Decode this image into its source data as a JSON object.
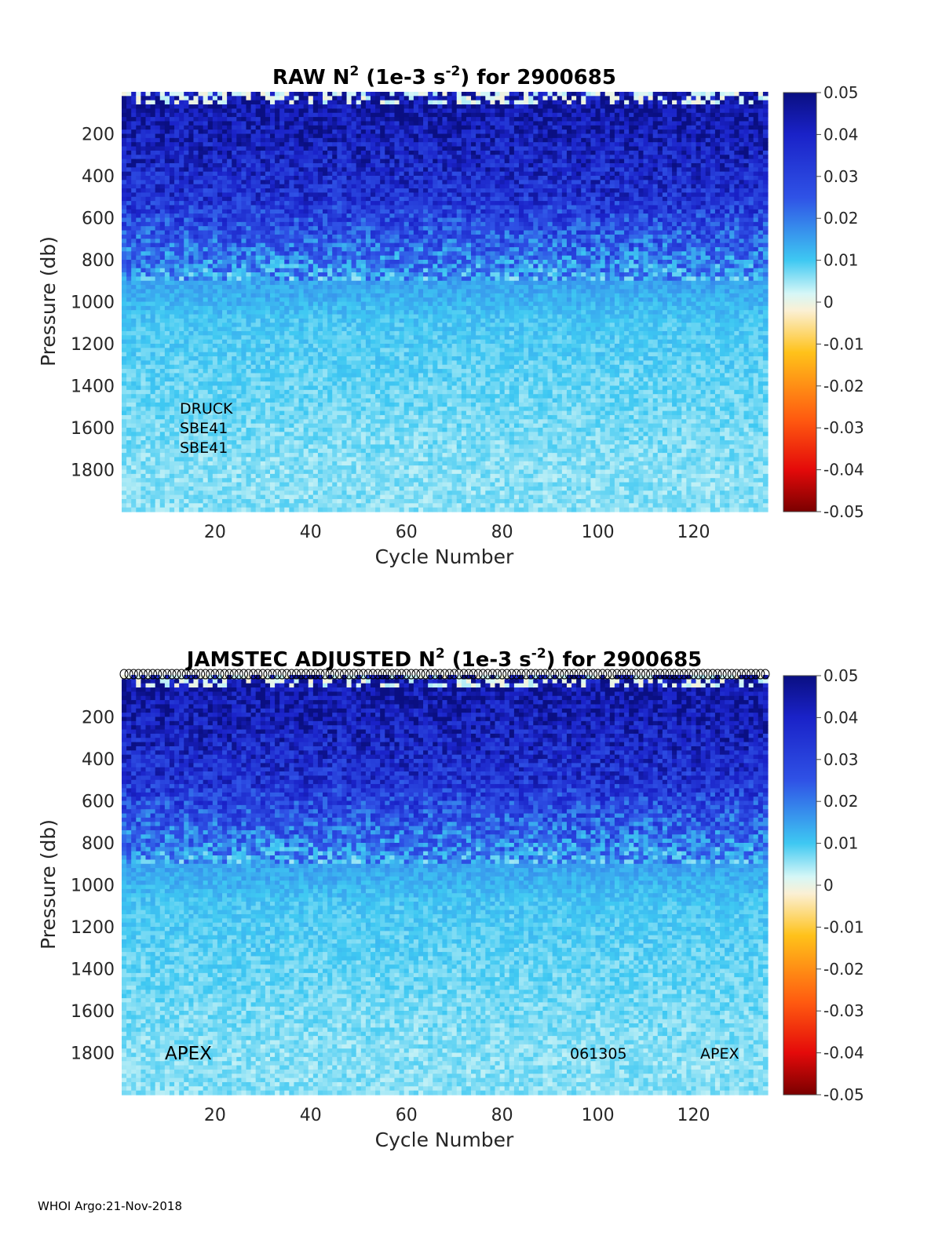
{
  "footer": "WHOI Argo:21-Nov-2018",
  "colorbar": {
    "ticks": [
      "0.05",
      "0.04",
      "0.03",
      "0.02",
      "0.01",
      "0",
      "-0.01",
      "-0.02",
      "-0.03",
      "-0.04",
      "-0.05"
    ],
    "range": [
      -0.05,
      0.05
    ],
    "colormap": "blue-cyan-white-yellow-red (jet-like diverging)"
  },
  "chart_data": [
    {
      "type": "heatmap",
      "title_main": "RAW N",
      "title_sup1": "2",
      "title_mid": " (1e-3 s",
      "title_sup2": "-2",
      "title_end": ") for 2900685",
      "xlabel": "Cycle Number",
      "ylabel": "Pressure (db)",
      "xlim": [
        1,
        135
      ],
      "ylim": [
        2000,
        0
      ],
      "xticks": [
        "20",
        "40",
        "60",
        "80",
        "100",
        "120"
      ],
      "yticks": [
        "200",
        "400",
        "600",
        "800",
        "1000",
        "1200",
        "1400",
        "1600",
        "1800"
      ],
      "clim": [
        -0.05,
        0.05
      ],
      "annotations": [
        "DRUCK",
        "SBE41",
        "SBE41"
      ],
      "profile_rows_approx": [
        {
          "pressure": 100,
          "value": 0.045
        },
        {
          "pressure": 300,
          "value": 0.04
        },
        {
          "pressure": 500,
          "value": 0.035
        },
        {
          "pressure": 700,
          "value": 0.025
        },
        {
          "pressure": 900,
          "value": 0.015
        },
        {
          "pressure": 1100,
          "value": 0.01
        },
        {
          "pressure": 1400,
          "value": 0.008
        },
        {
          "pressure": 1800,
          "value": 0.006
        }
      ]
    },
    {
      "type": "heatmap",
      "title_main": "JAMSTEC  ADJUSTED N",
      "title_sup1": "2",
      "title_mid": " (1e-3 s",
      "title_sup2": "-2",
      "title_end": ") for 2900685",
      "xlabel": "Cycle Number",
      "ylabel": "Pressure (db)",
      "xlim": [
        1,
        135
      ],
      "ylim": [
        2000,
        0
      ],
      "xticks": [
        "20",
        "40",
        "60",
        "80",
        "100",
        "120"
      ],
      "yticks": [
        "200",
        "400",
        "600",
        "800",
        "1000",
        "1200",
        "1400",
        "1600",
        "1800"
      ],
      "clim": [
        -0.05,
        0.05
      ],
      "annotations": [
        "APEX",
        "061305",
        "APEX"
      ],
      "top_markers": "circles at each cycle",
      "profile_rows_approx": [
        {
          "pressure": 100,
          "value": 0.045
        },
        {
          "pressure": 300,
          "value": 0.04
        },
        {
          "pressure": 500,
          "value": 0.035
        },
        {
          "pressure": 700,
          "value": 0.025
        },
        {
          "pressure": 900,
          "value": 0.015
        },
        {
          "pressure": 1100,
          "value": 0.01
        },
        {
          "pressure": 1400,
          "value": 0.008
        },
        {
          "pressure": 1800,
          "value": 0.006
        }
      ]
    }
  ]
}
